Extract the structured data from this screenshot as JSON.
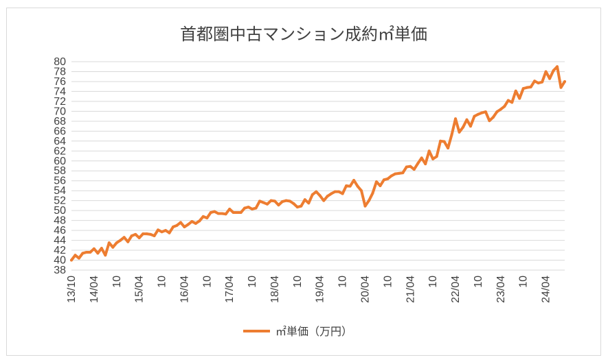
{
  "chart_data": {
    "type": "line",
    "title": "首都圏中古マンション成約㎡単価",
    "xlabel": "",
    "ylabel": "",
    "ylim": [
      38,
      80
    ],
    "y_ticks": [
      38,
      40,
      42,
      44,
      46,
      48,
      50,
      52,
      54,
      56,
      58,
      60,
      62,
      64,
      66,
      68,
      70,
      72,
      74,
      76,
      78,
      80
    ],
    "x_start": "13/10",
    "x_tick_labels": [
      "13/10",
      "14/04",
      "10",
      "15/04",
      "10",
      "16/04",
      "10",
      "17/04",
      "10",
      "18/04",
      "10",
      "19/04",
      "10",
      "20/04",
      "10",
      "21/04",
      "10",
      "22/04",
      "10",
      "23/04",
      "10",
      "24/04"
    ],
    "grid": true,
    "legend_position": "bottom",
    "series": [
      {
        "name": "㎡単価（万円）",
        "color": "#ED7D31",
        "values": [
          40.0,
          41.0,
          40.4,
          41.4,
          41.6,
          41.6,
          42.3,
          41.4,
          42.4,
          41.0,
          43.5,
          42.6,
          43.5,
          44.0,
          44.6,
          43.7,
          44.9,
          45.2,
          44.5,
          45.3,
          45.3,
          45.2,
          44.9,
          46.1,
          45.7,
          46.0,
          45.5,
          46.7,
          47.0,
          47.6,
          46.7,
          47.2,
          47.8,
          47.4,
          47.9,
          48.8,
          48.5,
          49.6,
          49.8,
          49.4,
          49.4,
          49.3,
          50.3,
          49.6,
          49.6,
          49.6,
          50.5,
          50.7,
          50.3,
          50.5,
          51.9,
          51.6,
          51.3,
          52.0,
          51.9,
          51.1,
          51.8,
          52.0,
          51.9,
          51.4,
          50.7,
          50.9,
          52.2,
          51.5,
          53.2,
          53.8,
          53.0,
          52.0,
          52.9,
          53.4,
          53.8,
          53.8,
          53.4,
          55.0,
          54.9,
          56.1,
          54.9,
          54.0,
          50.9,
          52.0,
          53.5,
          55.8,
          55.0,
          56.2,
          56.4,
          57.0,
          57.4,
          57.5,
          57.6,
          58.8,
          58.9,
          58.3,
          59.5,
          60.6,
          59.4,
          62.0,
          60.4,
          60.9,
          64.0,
          63.9,
          62.6,
          65.3,
          68.5,
          65.8,
          66.8,
          68.3,
          67.0,
          69.0,
          69.4,
          69.7,
          69.9,
          68.1,
          68.8,
          69.9,
          70.4,
          71.0,
          72.2,
          71.8,
          74.1,
          72.6,
          74.6,
          74.8,
          74.9,
          76.1,
          75.7,
          75.9,
          78.0,
          76.6,
          78.2,
          79.0,
          74.8,
          76.0
        ]
      }
    ]
  }
}
